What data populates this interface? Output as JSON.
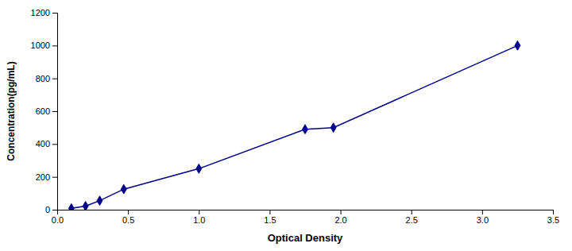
{
  "chart_data": {
    "type": "line",
    "x": [
      0.1,
      0.2,
      0.3,
      0.47,
      1.0,
      1.75,
      1.95,
      3.25
    ],
    "values": [
      8,
      22,
      55,
      125,
      250,
      490,
      500,
      1000
    ],
    "color": "#00008B",
    "marker": "diamond",
    "xlabel": "Optical Density",
    "ylabel": "Concentration(pg/mL)",
    "xlim": [
      0,
      3.5
    ],
    "ylim": [
      0,
      1200
    ],
    "xticks": [
      {
        "value": 0,
        "label": "0.0"
      },
      0.5,
      {
        "value": 1.0,
        "label": "1.0"
      },
      1.5,
      {
        "value": 2.0,
        "label": "2.0"
      },
      2.5,
      {
        "value": 3.0,
        "label": "3.0"
      },
      3.5
    ],
    "yticks": [
      0,
      200,
      400,
      600,
      800,
      1000,
      1200
    ],
    "grid": false
  }
}
